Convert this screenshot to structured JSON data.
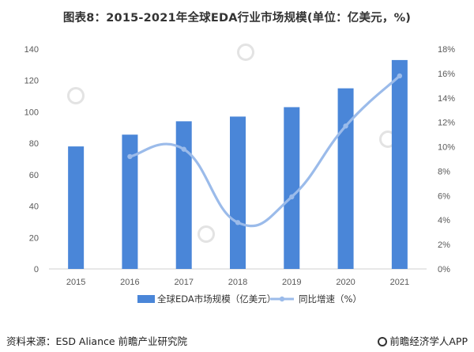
{
  "title": "图表8：2015-2021年全球EDA行业市场规模(单位：亿美元，%)",
  "footer": {
    "source": "资料来源：ESD Aliance 前瞻产业研究院",
    "brand": "前瞻经济学人APP"
  },
  "watermark": "前瞻产业研究院",
  "chart_data": {
    "type": "bar",
    "categories": [
      "2015",
      "2016",
      "2017",
      "2018",
      "2019",
      "2020",
      "2021"
    ],
    "series": [
      {
        "name": "全球EDA市场规模（亿美元）",
        "type": "bar",
        "axis": "left",
        "values": [
          78,
          85.5,
          94,
          97,
          103,
          115,
          133
        ]
      },
      {
        "name": "同比增速（%）",
        "type": "line",
        "smooth": true,
        "axis": "right",
        "values": [
          null,
          9.2,
          9.8,
          3.8,
          5.9,
          11.7,
          15.8
        ]
      }
    ],
    "y_left": {
      "ticks": [
        "0",
        "20",
        "40",
        "60",
        "80",
        "100",
        "120",
        "140"
      ],
      "ylim": [
        0,
        140
      ]
    },
    "y_right": {
      "ticks": [
        "0%",
        "2%",
        "4%",
        "6%",
        "8%",
        "10%",
        "12%",
        "14%",
        "16%",
        "18%"
      ],
      "ylim": [
        0,
        18
      ]
    },
    "grid": false,
    "legend_position": "bottom",
    "colors": {
      "bar": "#4a86d8",
      "line": "#9bbbea",
      "axis": "#d0d0d0"
    }
  }
}
